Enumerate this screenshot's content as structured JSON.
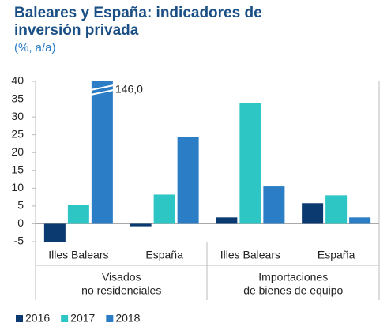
{
  "chart_data": {
    "type": "bar",
    "title": "Baleares y España: indicadores de inversión privada",
    "subtitle": "(%, a/a)",
    "categories": [
      "Illes Balears",
      "España",
      "Illes Balears",
      "España"
    ],
    "group_labels": [
      [
        "Visados",
        "no residenciales"
      ],
      [
        "Importaciones",
        "de bienes de equipo"
      ]
    ],
    "series": [
      {
        "name": "2016",
        "color": "#0b3a70",
        "values": [
          -5.0,
          -0.7,
          1.8,
          5.8
        ]
      },
      {
        "name": "2017",
        "color": "#2ec5c5",
        "values": [
          5.3,
          8.2,
          34.0,
          8.0
        ]
      },
      {
        "name": "2018",
        "color": "#2b7dc5",
        "values": [
          146.0,
          24.4,
          10.5,
          1.8
        ],
        "value_labels": [
          "146,0",
          null,
          null,
          null
        ]
      }
    ],
    "ylim": [
      -5,
      40
    ],
    "yticks": [
      -5,
      0,
      5,
      10,
      15,
      20,
      25,
      30,
      35,
      40
    ],
    "grid": false
  }
}
